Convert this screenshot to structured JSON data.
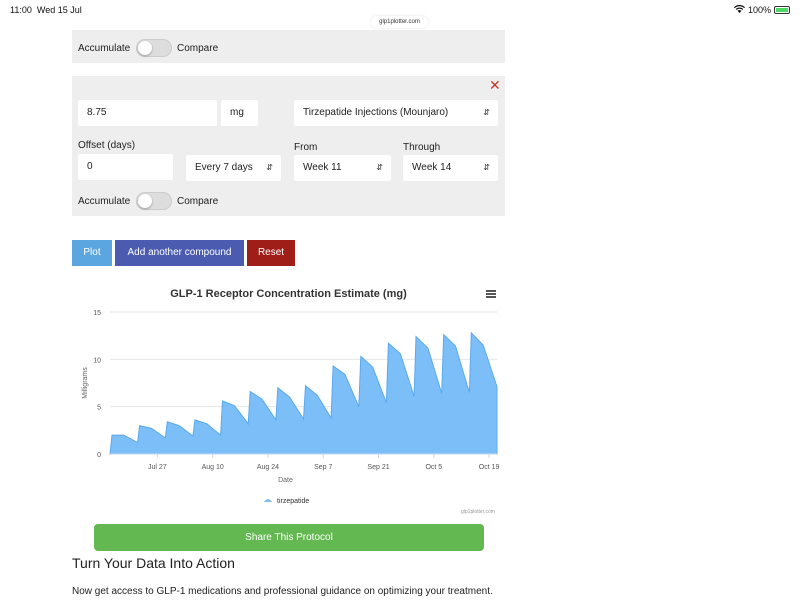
{
  "statusbar": {
    "time": "11:00",
    "date": "Wed 15 Jul",
    "battery": "100%",
    "url": "glp1plotter.com"
  },
  "card1": {
    "accumulate_label": "Accumulate",
    "compare_label": "Compare"
  },
  "card2": {
    "dose_value": "8.75",
    "unit": "mg",
    "compound": "Tirzepatide Injections (Mounjaro)",
    "offset_label": "Offset (days)",
    "offset_value": "0",
    "frequency": "Every 7 days",
    "from_label": "From",
    "from_value": "Week 11",
    "through_label": "Through",
    "through_value": "Week 14",
    "accumulate_label": "Accumulate",
    "compare_label": "Compare",
    "close_glyph": "✕"
  },
  "buttons": {
    "plot": "Plot",
    "add": "Add another compound",
    "reset": "Reset"
  },
  "chart_data": {
    "type": "area",
    "title": "GLP-1 Receptor Concentration Estimate (mg)",
    "xlabel": "Date",
    "ylabel": "Milligrams",
    "ylim": [
      0,
      15
    ],
    "yticks": [
      "0",
      "5",
      "10",
      "15"
    ],
    "xticks": [
      "Jul 27",
      "Aug 10",
      "Aug 24",
      "Sep 7",
      "Sep 21",
      "Oct 5",
      "Oct 19"
    ],
    "grid": true,
    "legend_position": "bottom",
    "credit": "glp1plotter.com",
    "color": "#7cbef7",
    "series": [
      {
        "name": "tirzepatide",
        "x_start": "2026-07-15",
        "points": [
          [
            0,
            0
          ],
          [
            0.5,
            2.0
          ],
          [
            3.5,
            2.0
          ],
          [
            7,
            1.2
          ],
          [
            7.5,
            3.0
          ],
          [
            10.5,
            2.7
          ],
          [
            14,
            1.7
          ],
          [
            14.5,
            3.4
          ],
          [
            17.5,
            3.0
          ],
          [
            21,
            1.9
          ],
          [
            21.5,
            3.6
          ],
          [
            24.5,
            3.2
          ],
          [
            28,
            2.0
          ],
          [
            28.5,
            5.6
          ],
          [
            31.5,
            5.1
          ],
          [
            35,
            3.2
          ],
          [
            35.5,
            6.6
          ],
          [
            38.5,
            5.8
          ],
          [
            42,
            3.6
          ],
          [
            42.5,
            7.0
          ],
          [
            45.5,
            6.0
          ],
          [
            49,
            3.7
          ],
          [
            49.5,
            7.2
          ],
          [
            52.5,
            6.2
          ],
          [
            56,
            3.8
          ],
          [
            56.5,
            9.3
          ],
          [
            59.5,
            8.4
          ],
          [
            63,
            5.0
          ],
          [
            63.5,
            10.3
          ],
          [
            66.5,
            9.2
          ],
          [
            70,
            5.4
          ],
          [
            70.5,
            11.7
          ],
          [
            73.5,
            10.6
          ],
          [
            77,
            6.1
          ],
          [
            77.5,
            12.4
          ],
          [
            80.5,
            11.2
          ],
          [
            84,
            6.4
          ],
          [
            84.5,
            12.6
          ],
          [
            87.5,
            11.4
          ],
          [
            91,
            6.5
          ],
          [
            91.5,
            12.8
          ],
          [
            94.5,
            11.5
          ],
          [
            98,
            7.1
          ]
        ]
      }
    ]
  },
  "share_label": "Share This Protocol",
  "section_heading": "Turn Your Data Into Action",
  "section_text": "Now get access to GLP-1 medications and professional guidance on optimizing your treatment."
}
